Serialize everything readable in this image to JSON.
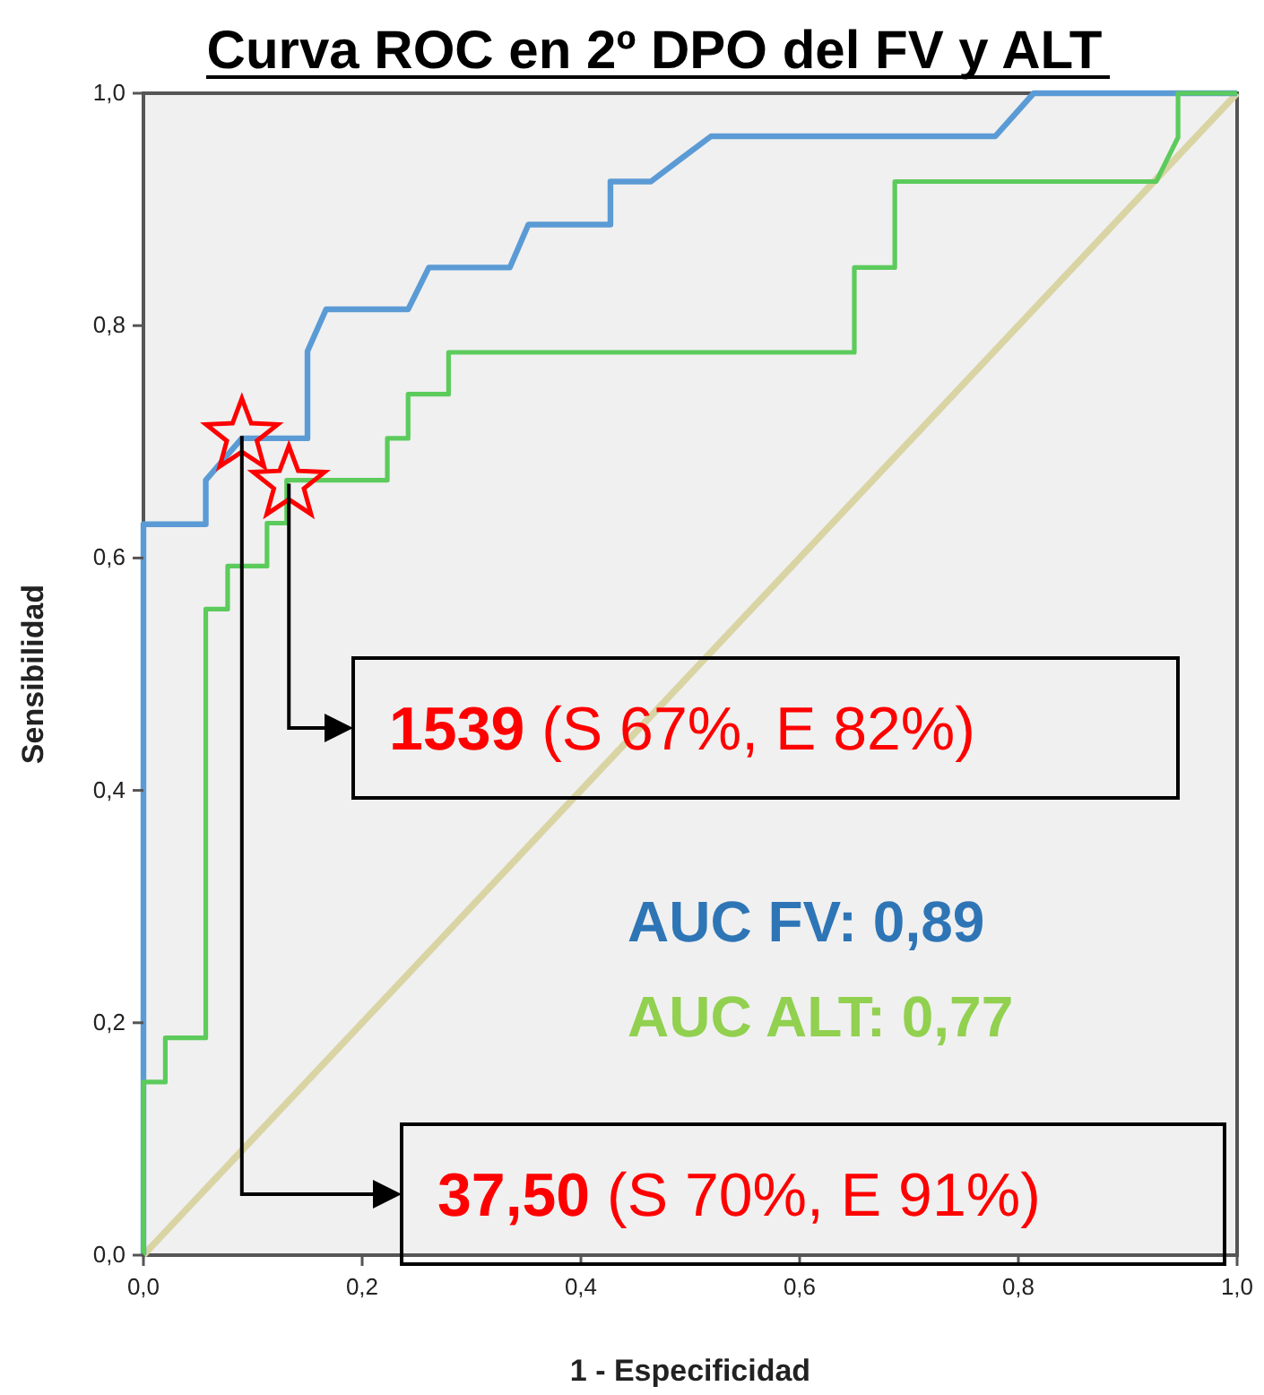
{
  "chart_data": {
    "type": "line",
    "title": "Curva ROC en 2º DPO del FV y ALT",
    "xlabel": "1 - Especificidad",
    "ylabel": "Sensibilidad",
    "xlim": [
      0,
      1
    ],
    "ylim": [
      0,
      1
    ],
    "xticks": [
      {
        "value": 0,
        "label": "0,0"
      },
      {
        "value": 0.2,
        "label": "0,2"
      },
      {
        "value": 0.4,
        "label": "0,4"
      },
      {
        "value": 0.6,
        "label": "0,6"
      },
      {
        "value": 0.8,
        "label": "0,8"
      },
      {
        "value": 1,
        "label": "1,0"
      }
    ],
    "yticks": [
      {
        "value": 0,
        "label": "0,0"
      },
      {
        "value": 0.2,
        "label": "0,2"
      },
      {
        "value": 0.4,
        "label": "0,4"
      },
      {
        "value": 0.6,
        "label": "0,6"
      },
      {
        "value": 0.8,
        "label": "0,8"
      },
      {
        "value": 1,
        "label": "1,0"
      }
    ],
    "grid": false,
    "marker": "none",
    "line_style": "solid",
    "series": [
      {
        "color": "#d9d4a3",
        "x": [
          0,
          1
        ],
        "values": [
          0,
          1
        ]
      },
      {
        "color": "#5b9bd5",
        "x": [
          0,
          0,
          0.057,
          0.057,
          0.09,
          0.15,
          0.15,
          0.167,
          0.242,
          0.261,
          0.335,
          0.352,
          0.427,
          0.427,
          0.464,
          0.492,
          0.519,
          0.779,
          0.814,
          1
        ],
        "values": [
          0,
          0.629,
          0.629,
          0.667,
          0.703,
          0.703,
          0.778,
          0.814,
          0.814,
          0.85,
          0.85,
          0.887,
          0.887,
          0.924,
          0.924,
          0.944,
          0.963,
          0.963,
          1,
          1
        ]
      },
      {
        "color": "#5ccb5c",
        "x": [
          0,
          0,
          0.02,
          0.02,
          0.057,
          0.057,
          0.077,
          0.077,
          0.113,
          0.113,
          0.131,
          0.131,
          0.223,
          0.223,
          0.242,
          0.242,
          0.279,
          0.279,
          0.65,
          0.65,
          0.687,
          0.687,
          0.926,
          0.946,
          0.946,
          1
        ],
        "values": [
          0,
          0.149,
          0.149,
          0.187,
          0.187,
          0.556,
          0.556,
          0.593,
          0.593,
          0.63,
          0.63,
          0.667,
          0.667,
          0.703,
          0.703,
          0.741,
          0.741,
          0.777,
          0.777,
          0.85,
          0.85,
          0.924,
          0.924,
          0.962,
          1,
          1
        ]
      },
      {
        "type": "scatter",
        "marker": "star",
        "color": "#ff0000",
        "x": [
          0.09,
          0.133
        ],
        "values": [
          0.705,
          0.664
        ]
      }
    ],
    "annotations": [
      {
        "text": "1539 (S 67%, E 82%)",
        "x": 0.133,
        "y": 0.664
      },
      {
        "text": "37,50 (S 70%, E 91%)",
        "x": 0.09,
        "y": 0.705
      },
      "AUC FV: 0,89",
      "AUC ALT: 0,77"
    ]
  }
}
